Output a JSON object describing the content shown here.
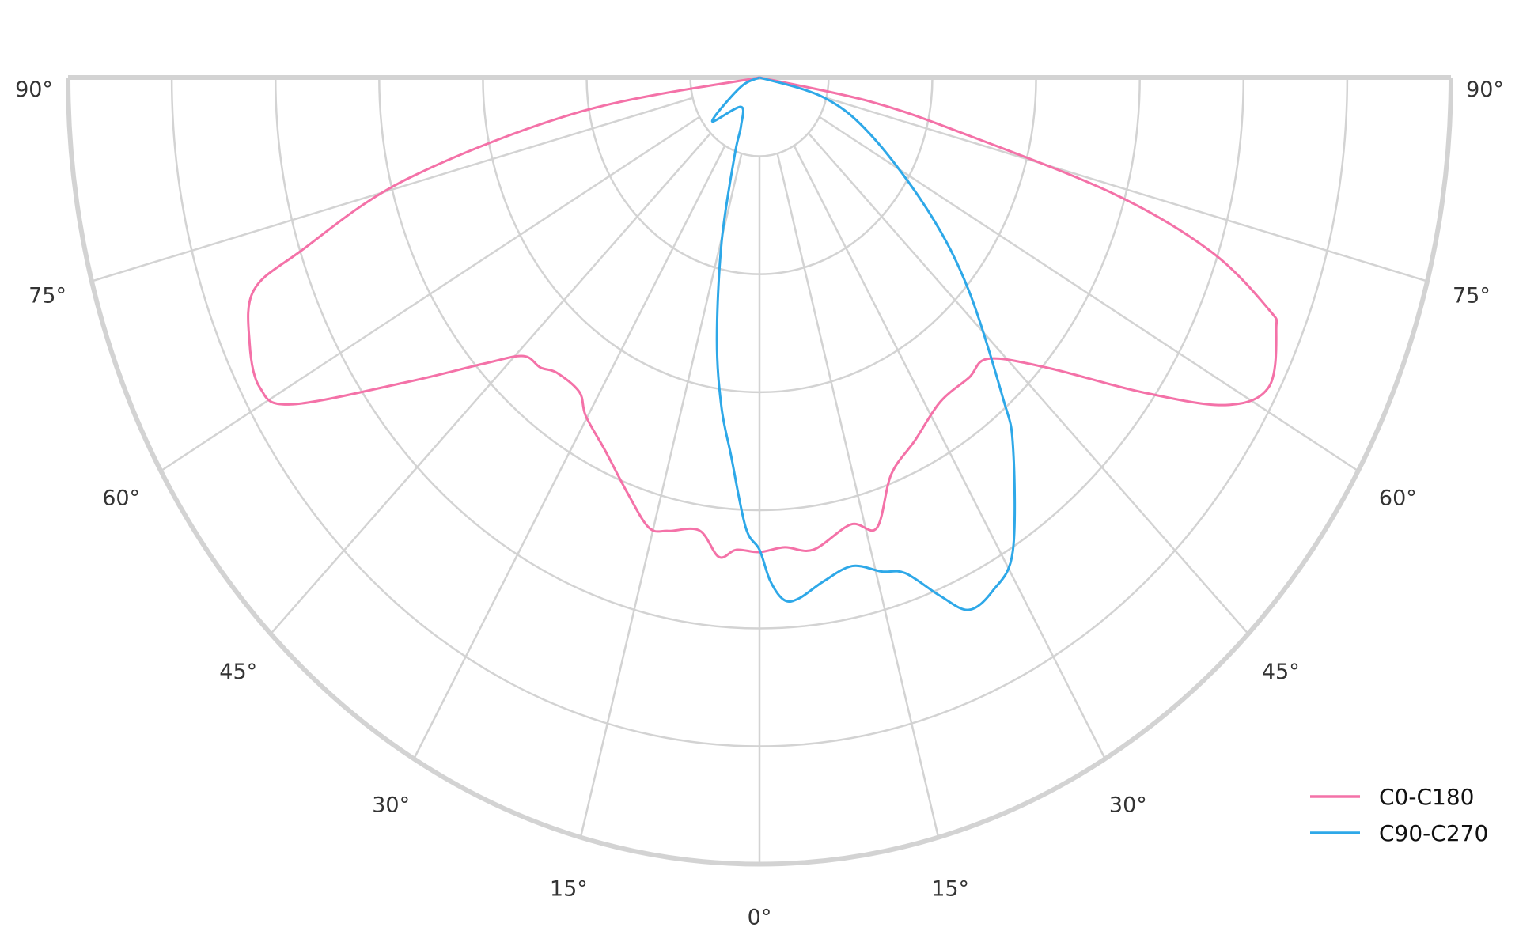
{
  "chart_data": {
    "type": "polar",
    "title": "",
    "angle_zero": "bottom",
    "angle_tick_labels": [
      "90°",
      "75°",
      "60°",
      "45°",
      "30°",
      "15°",
      "0°",
      "15°",
      "30°",
      "45°",
      "60°",
      "75°",
      "90°"
    ],
    "angle_ticks": [
      -90,
      -75,
      -60,
      -45,
      -30,
      -15,
      0,
      15,
      30,
      45,
      60,
      75,
      90
    ],
    "radial_rings": [
      0.1,
      0.25,
      0.4,
      0.55,
      0.7,
      0.85,
      1.0
    ],
    "radial_tick_labels": [],
    "grid": true,
    "legend_position": "bottom-right",
    "series": [
      {
        "name": "C0-C180",
        "color": "#f472a8",
        "points": [
          [
            -90,
            0
          ],
          [
            -80.5,
            0.261
          ],
          [
            -75.8,
            0.526
          ],
          [
            -71.6,
            0.7
          ],
          [
            -69.7,
            0.78
          ],
          [
            -65.4,
            0.811
          ],
          [
            -61.4,
            0.823
          ],
          [
            -58.5,
            0.795
          ],
          [
            -52.8,
            0.64
          ],
          [
            -47.6,
            0.539
          ],
          [
            -44,
            0.492
          ],
          [
            -40.7,
            0.486
          ],
          [
            -38,
            0.476
          ],
          [
            -33.1,
            0.477
          ],
          [
            -30.3,
            0.498
          ],
          [
            -25.2,
            0.524
          ],
          [
            -19.8,
            0.562
          ],
          [
            -15.6,
            0.594
          ],
          [
            -12.9,
            0.591
          ],
          [
            -8.6,
            0.582
          ],
          [
            -5.5,
            0.612
          ],
          [
            -3.2,
            0.601
          ],
          [
            0,
            0.603
          ],
          [
            3.5,
            0.598
          ],
          [
            7.4,
            0.605
          ],
          [
            13.1,
            0.583
          ],
          [
            16.5,
            0.597
          ],
          [
            20.7,
            0.539
          ],
          [
            26,
            0.513
          ],
          [
            32.4,
            0.488
          ],
          [
            38.5,
            0.487
          ],
          [
            42.8,
            0.487
          ],
          [
            48.4,
            0.555
          ],
          [
            54.2,
            0.684
          ],
          [
            58.3,
            0.792
          ],
          [
            61.9,
            0.835
          ],
          [
            66.8,
            0.813
          ],
          [
            68.2,
            0.793
          ],
          [
            71.3,
            0.689
          ],
          [
            73.9,
            0.534
          ],
          [
            76.3,
            0.312
          ],
          [
            79.2,
            0.165
          ],
          [
            90,
            0
          ]
        ]
      },
      {
        "name": "C90-C270",
        "color": "#2ea8e8",
        "points": [
          [
            -90,
            0
          ],
          [
            -66,
            0.03
          ],
          [
            -51,
            0.088
          ],
          [
            -36,
            0.046
          ],
          [
            -23.5,
            0.067
          ],
          [
            -20,
            0.105
          ],
          [
            -14.7,
            0.216
          ],
          [
            -10.5,
            0.338
          ],
          [
            -7.5,
            0.422
          ],
          [
            -4.9,
            0.482
          ],
          [
            -2,
            0.572
          ],
          [
            0,
            0.6
          ],
          [
            1.4,
            0.64
          ],
          [
            3.1,
            0.665
          ],
          [
            5,
            0.664
          ],
          [
            8.2,
            0.647
          ],
          [
            12.2,
            0.635
          ],
          [
            15.7,
            0.652
          ],
          [
            18.5,
            0.664
          ],
          [
            21.6,
            0.708
          ],
          [
            24.1,
            0.741
          ],
          [
            27.4,
            0.734
          ],
          [
            31.3,
            0.705
          ],
          [
            38.1,
            0.594
          ],
          [
            40.9,
            0.537
          ],
          [
            48.2,
            0.406
          ],
          [
            55,
            0.3
          ],
          [
            65.5,
            0.178
          ],
          [
            74.8,
            0.096
          ],
          [
            90,
            0
          ]
        ]
      }
    ]
  }
}
